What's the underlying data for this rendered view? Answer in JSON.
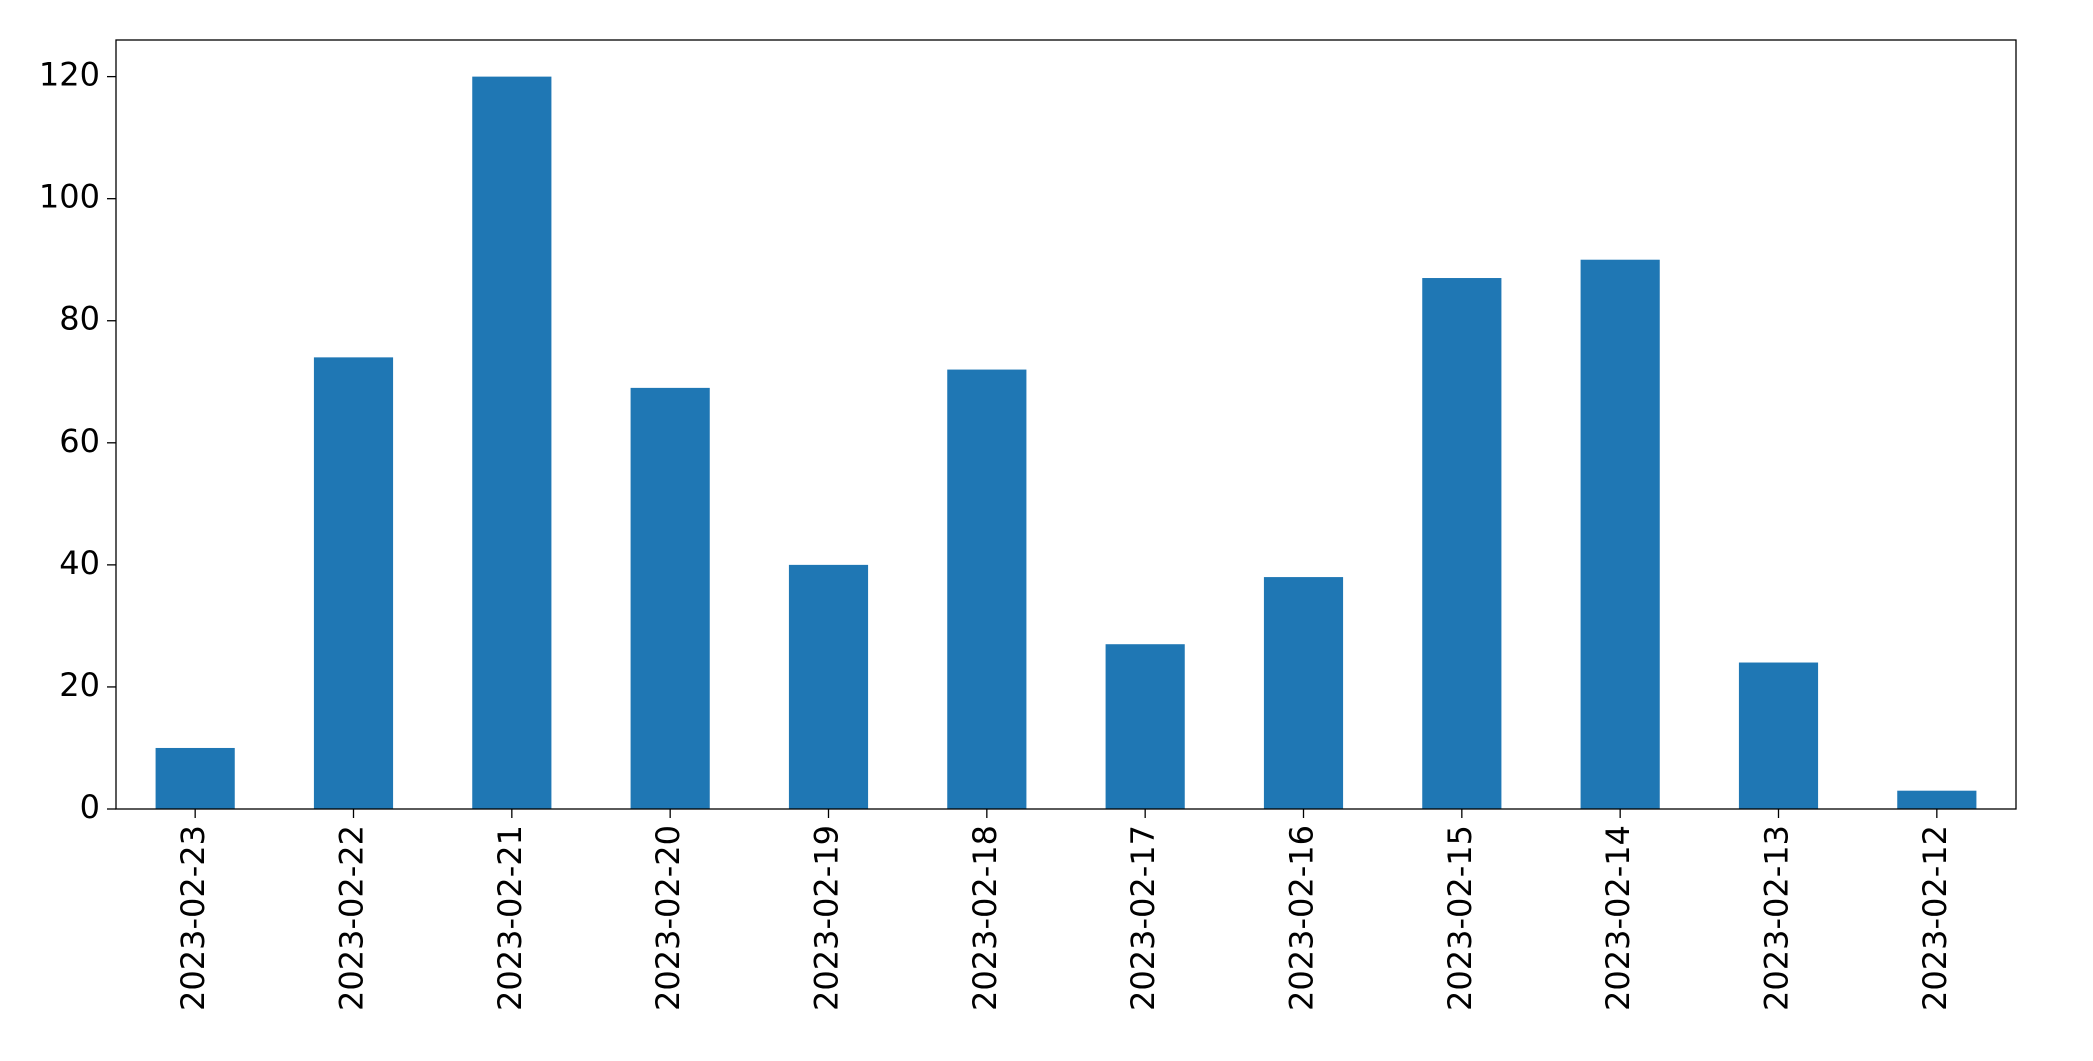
{
  "chart_data": {
    "type": "bar",
    "categories": [
      "2023-02-23",
      "2023-02-22",
      "2023-02-21",
      "2023-02-20",
      "2023-02-19",
      "2023-02-18",
      "2023-02-17",
      "2023-02-16",
      "2023-02-15",
      "2023-02-14",
      "2023-02-13",
      "2023-02-12"
    ],
    "values": [
      10,
      74,
      120,
      69,
      40,
      72,
      27,
      38,
      87,
      90,
      24,
      3
    ],
    "color": "#1f77b4",
    "ylim": [
      0,
      126
    ],
    "yticks": [
      0,
      20,
      40,
      60,
      80,
      100,
      120
    ],
    "grid": false
  }
}
